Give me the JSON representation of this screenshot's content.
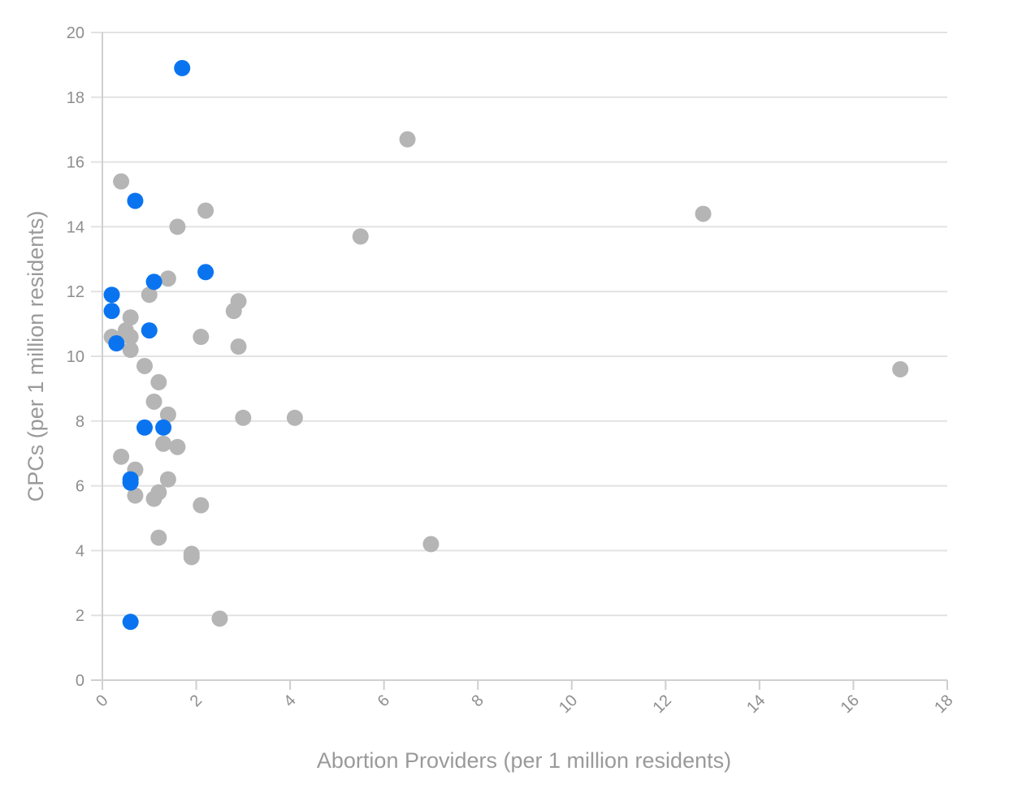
{
  "chart_data": {
    "type": "scatter",
    "xlabel": "Abortion Providers (per 1 million residents)",
    "ylabel": "CPCs (per 1 million residents)",
    "xlim": [
      0,
      18
    ],
    "ylim": [
      0,
      20
    ],
    "x_ticks": [
      0,
      2,
      4,
      6,
      8,
      10,
      12,
      14,
      16,
      18
    ],
    "y_ticks": [
      0,
      2,
      4,
      6,
      8,
      10,
      12,
      14,
      16,
      18,
      20
    ],
    "grid": "horizontal",
    "colors": {
      "highlight": "#0a74f0",
      "default": "#b5b5b5"
    },
    "series": [
      {
        "color": "#b5b5b5",
        "points": [
          {
            "x": 0.4,
            "y": 15.4
          },
          {
            "x": 1.6,
            "y": 14.0
          },
          {
            "x": 2.2,
            "y": 14.5
          },
          {
            "x": 1.4,
            "y": 12.4
          },
          {
            "x": 1.0,
            "y": 11.9
          },
          {
            "x": 0.6,
            "y": 11.2
          },
          {
            "x": 0.2,
            "y": 10.6
          },
          {
            "x": 0.5,
            "y": 10.8
          },
          {
            "x": 0.6,
            "y": 10.6
          },
          {
            "x": 0.6,
            "y": 10.2
          },
          {
            "x": 0.9,
            "y": 9.7
          },
          {
            "x": 1.2,
            "y": 9.2
          },
          {
            "x": 1.1,
            "y": 8.6
          },
          {
            "x": 1.4,
            "y": 8.2
          },
          {
            "x": 1.3,
            "y": 7.3
          },
          {
            "x": 1.6,
            "y": 7.2
          },
          {
            "x": 0.4,
            "y": 6.9
          },
          {
            "x": 0.7,
            "y": 6.5
          },
          {
            "x": 1.4,
            "y": 6.2
          },
          {
            "x": 0.7,
            "y": 5.7
          },
          {
            "x": 1.2,
            "y": 5.8
          },
          {
            "x": 1.1,
            "y": 5.6
          },
          {
            "x": 2.1,
            "y": 5.4
          },
          {
            "x": 1.2,
            "y": 4.4
          },
          {
            "x": 1.9,
            "y": 3.9
          },
          {
            "x": 1.9,
            "y": 3.8
          },
          {
            "x": 2.5,
            "y": 1.9
          },
          {
            "x": 2.1,
            "y": 10.6
          },
          {
            "x": 2.8,
            "y": 11.4
          },
          {
            "x": 2.9,
            "y": 11.7
          },
          {
            "x": 2.9,
            "y": 10.3
          },
          {
            "x": 3.0,
            "y": 8.1
          },
          {
            "x": 4.1,
            "y": 8.1
          },
          {
            "x": 5.5,
            "y": 13.7
          },
          {
            "x": 6.5,
            "y": 16.7
          },
          {
            "x": 7.0,
            "y": 4.2
          },
          {
            "x": 12.8,
            "y": 14.4
          },
          {
            "x": 17.0,
            "y": 9.6
          }
        ]
      },
      {
        "color": "#0a74f0",
        "points": [
          {
            "x": 1.7,
            "y": 18.9
          },
          {
            "x": 0.7,
            "y": 14.8
          },
          {
            "x": 2.2,
            "y": 12.6
          },
          {
            "x": 1.1,
            "y": 12.3
          },
          {
            "x": 0.2,
            "y": 11.9
          },
          {
            "x": 0.2,
            "y": 11.4
          },
          {
            "x": 1.0,
            "y": 10.8
          },
          {
            "x": 0.3,
            "y": 10.4
          },
          {
            "x": 0.9,
            "y": 7.8
          },
          {
            "x": 1.3,
            "y": 7.8
          },
          {
            "x": 0.6,
            "y": 6.2
          },
          {
            "x": 0.6,
            "y": 6.1
          },
          {
            "x": 0.6,
            "y": 1.8
          }
        ]
      }
    ]
  }
}
